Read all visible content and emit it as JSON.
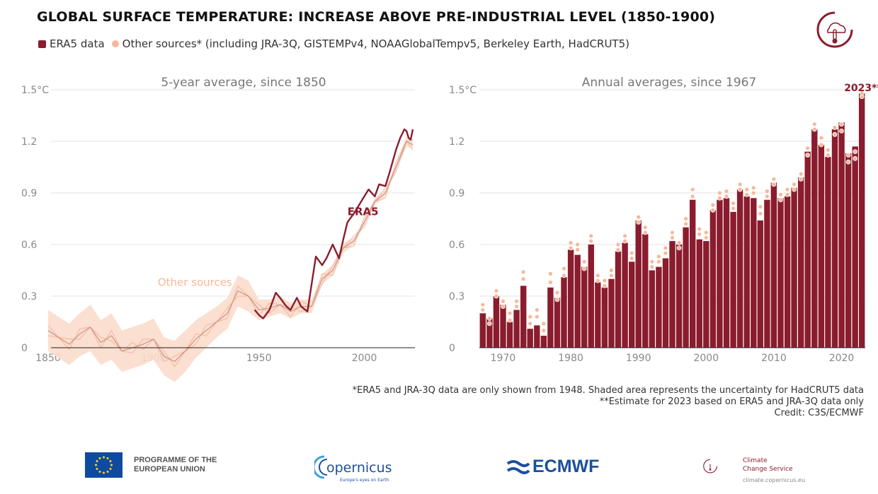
{
  "title": "GLOBAL SURFACE TEMPERATURE: INCREASE ABOVE PRE-INDUSTRIAL LEVEL (1850-1900)",
  "legend": {
    "era5": "ERA5 data",
    "other": "Other sources* (including JRA-3Q, GISTEMPv4, NOAAGlobalTempv5, Berkeley Earth, HadCRUT5)"
  },
  "colors": {
    "era5": "#8a1c2e",
    "other": "#f5b89a",
    "shade": "#fbdccb",
    "grid": "#e3e3e3"
  },
  "chart_data": [
    {
      "type": "line",
      "title": "5-year average, since 1850",
      "xlim": [
        1848,
        2024
      ],
      "ylim": [
        -0.15,
        1.5
      ],
      "xticks": [
        1850,
        1900,
        1950,
        2000
      ],
      "yticks": [
        0,
        0.3,
        0.6,
        0.9,
        1.2,
        1.5
      ],
      "ytick_labels": [
        "0",
        "0.3",
        "0.6",
        "0.9",
        "1.2",
        "1.5°C"
      ],
      "annotations": {
        "era5": "ERA5",
        "other": "Other sources"
      },
      "other_sources": {
        "x": [
          1850,
          1855,
          1860,
          1865,
          1870,
          1875,
          1880,
          1885,
          1890,
          1895,
          1900,
          1905,
          1910,
          1915,
          1920,
          1925,
          1930,
          1935,
          1940,
          1945,
          1950,
          1955,
          1960,
          1965,
          1970,
          1975,
          1980,
          1985,
          1990,
          1995,
          2000,
          2005,
          2010,
          2015,
          2020,
          2023
        ],
        "y": [
          0.1,
          0.06,
          0.02,
          0.08,
          0.12,
          0.03,
          0.07,
          -0.02,
          0.0,
          0.02,
          0.05,
          -0.05,
          -0.08,
          -0.02,
          0.05,
          0.1,
          0.15,
          0.2,
          0.33,
          0.3,
          0.22,
          0.23,
          0.25,
          0.21,
          0.24,
          0.24,
          0.4,
          0.45,
          0.58,
          0.62,
          0.73,
          0.85,
          0.9,
          1.05,
          1.2,
          1.18
        ],
        "lower": [
          -0.02,
          -0.06,
          -0.1,
          -0.05,
          -0.02,
          -0.1,
          -0.07,
          -0.14,
          -0.12,
          -0.1,
          -0.07,
          -0.16,
          -0.2,
          -0.14,
          -0.06,
          0.0,
          0.06,
          0.11,
          0.24,
          0.21,
          0.16,
          0.18,
          0.2,
          0.17,
          0.2,
          0.2,
          0.37,
          0.42,
          0.55,
          0.6,
          0.71,
          0.83,
          0.88,
          1.03,
          1.17,
          1.16
        ],
        "upper": [
          0.22,
          0.18,
          0.14,
          0.2,
          0.25,
          0.16,
          0.2,
          0.1,
          0.12,
          0.14,
          0.17,
          0.06,
          0.04,
          0.1,
          0.16,
          0.2,
          0.24,
          0.29,
          0.42,
          0.39,
          0.28,
          0.28,
          0.3,
          0.26,
          0.28,
          0.28,
          0.43,
          0.48,
          0.61,
          0.64,
          0.75,
          0.87,
          0.92,
          1.07,
          1.23,
          1.2
        ]
      },
      "era5": {
        "x": [
          1948,
          1950,
          1952,
          1955,
          1958,
          1960,
          1963,
          1965,
          1968,
          1970,
          1973,
          1975,
          1977,
          1980,
          1982,
          1985,
          1988,
          1990,
          1992,
          1995,
          1998,
          2000,
          2002,
          2005,
          2007,
          2010,
          2012,
          2015,
          2017,
          2019,
          2020,
          2021,
          2022,
          2023
        ],
        "y": [
          0.22,
          0.19,
          0.17,
          0.22,
          0.32,
          0.29,
          0.24,
          0.22,
          0.29,
          0.24,
          0.21,
          0.37,
          0.53,
          0.48,
          0.52,
          0.6,
          0.52,
          0.63,
          0.73,
          0.78,
          0.84,
          0.88,
          0.92,
          0.88,
          0.95,
          0.94,
          1.02,
          1.15,
          1.22,
          1.27,
          1.26,
          1.22,
          1.21,
          1.27
        ]
      }
    },
    {
      "type": "bar",
      "title": "Annual averages, since 1967",
      "xlim": [
        1966.5,
        2024
      ],
      "ylim": [
        0,
        1.5
      ],
      "xticks": [
        1970,
        1980,
        1990,
        2000,
        2010,
        2020
      ],
      "yticks": [
        0,
        0.3,
        0.6,
        0.9,
        1.2,
        1.5
      ],
      "ytick_labels": [
        "0",
        "0.3",
        "0.6",
        "0.9",
        "1.2",
        "1.5°C"
      ],
      "annotation": "2023**",
      "categories": [
        1967,
        1968,
        1969,
        1970,
        1971,
        1972,
        1973,
        1974,
        1975,
        1976,
        1977,
        1978,
        1979,
        1980,
        1981,
        1982,
        1983,
        1984,
        1985,
        1986,
        1987,
        1988,
        1989,
        1990,
        1991,
        1992,
        1993,
        1994,
        1995,
        1996,
        1997,
        1998,
        1999,
        2000,
        2001,
        2002,
        2003,
        2004,
        2005,
        2006,
        2007,
        2008,
        2009,
        2010,
        2011,
        2012,
        2013,
        2014,
        2015,
        2016,
        2017,
        2018,
        2019,
        2020,
        2021,
        2022,
        2023
      ],
      "era5": [
        0.2,
        0.17,
        0.3,
        0.25,
        0.15,
        0.22,
        0.36,
        0.11,
        0.13,
        0.07,
        0.35,
        0.29,
        0.41,
        0.57,
        0.54,
        0.47,
        0.6,
        0.38,
        0.35,
        0.4,
        0.56,
        0.61,
        0.5,
        0.74,
        0.66,
        0.45,
        0.47,
        0.52,
        0.62,
        0.6,
        0.7,
        0.86,
        0.63,
        0.62,
        0.8,
        0.86,
        0.87,
        0.79,
        0.92,
        0.88,
        0.87,
        0.74,
        0.86,
        0.96,
        0.87,
        0.88,
        0.93,
        0.99,
        1.14,
        1.27,
        1.18,
        1.11,
        1.27,
        1.31,
        1.13,
        1.17,
        1.48
      ],
      "other_sources": [
        [
          0.22,
          0.25
        ],
        [
          0.14,
          0.17
        ],
        [
          0.3,
          0.33
        ],
        [
          0.24,
          0.27
        ],
        [
          0.16,
          0.2
        ],
        [
          0.24,
          0.27
        ],
        [
          0.4,
          0.44
        ],
        [
          0.14,
          0.18
        ],
        [
          0.18,
          0.22
        ],
        [
          0.1,
          0.14
        ],
        [
          0.38,
          0.43
        ],
        [
          0.28,
          0.32
        ],
        [
          0.42,
          0.46
        ],
        [
          0.58,
          0.61
        ],
        [
          0.57,
          0.6
        ],
        [
          0.46,
          0.5
        ],
        [
          0.62,
          0.65
        ],
        [
          0.39,
          0.42
        ],
        [
          0.36,
          0.39
        ],
        [
          0.42,
          0.45
        ],
        [
          0.57,
          0.6
        ],
        [
          0.62,
          0.65
        ],
        [
          0.52,
          0.55
        ],
        [
          0.73,
          0.76
        ],
        [
          0.67,
          0.7
        ],
        [
          0.47,
          0.5
        ],
        [
          0.5,
          0.53
        ],
        [
          0.55,
          0.58
        ],
        [
          0.64,
          0.67
        ],
        [
          0.58,
          0.61
        ],
        [
          0.72,
          0.75
        ],
        [
          0.88,
          0.92
        ],
        [
          0.66,
          0.69
        ],
        [
          0.64,
          0.67
        ],
        [
          0.8,
          0.83
        ],
        [
          0.87,
          0.9
        ],
        [
          0.88,
          0.91
        ],
        [
          0.81,
          0.84
        ],
        [
          0.92,
          0.95
        ],
        [
          0.89,
          0.92
        ],
        [
          0.9,
          0.93
        ],
        [
          0.78,
          0.82
        ],
        [
          0.88,
          0.91
        ],
        [
          0.95,
          0.98
        ],
        [
          0.86,
          0.89
        ],
        [
          0.89,
          0.92
        ],
        [
          0.92,
          0.95
        ],
        [
          0.98,
          1.01
        ],
        [
          1.12,
          1.16
        ],
        [
          1.27,
          1.3
        ],
        [
          1.18,
          1.22
        ],
        [
          1.12,
          1.15
        ],
        [
          1.24,
          1.28
        ],
        [
          1.26,
          1.3
        ],
        [
          1.08,
          1.12
        ],
        [
          1.1,
          1.14
        ],
        [
          1.46,
          1.48
        ]
      ]
    }
  ],
  "footnotes": [
    "*ERA5 and JRA-3Q data are only shown from 1948. Shaded area represents the uncertainty for HadCRUT5 data",
    "**Estimate for 2023 based on ERA5 and JRA-3Q data only",
    "Credit: C3S/ECMWF"
  ],
  "logos": {
    "eu_line1": "PROGRAMME OF THE",
    "eu_line2": "EUROPEAN UNION",
    "copernicus": "opernicus",
    "copernicus_tagline": "Europe's eyes on Earth",
    "ecmwf": "ECMWF",
    "c3s_line1": "Climate",
    "c3s_line2": "Change Service",
    "c3s_url": "climate.copernicus.eu"
  }
}
